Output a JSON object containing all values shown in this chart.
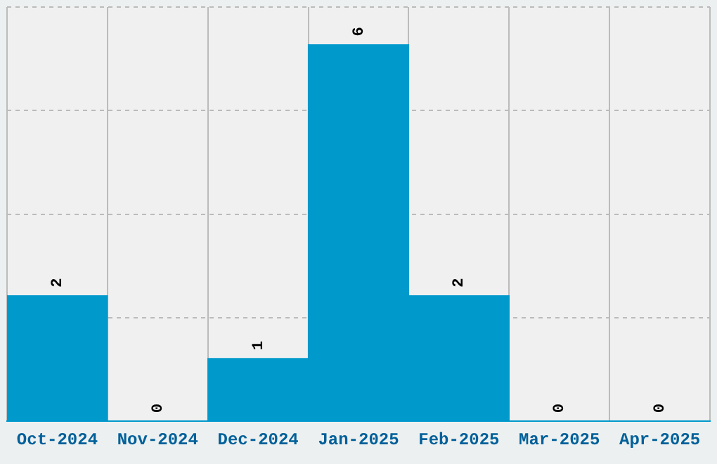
{
  "chart_data": {
    "type": "bar",
    "categories": [
      "Oct-2024",
      "Nov-2024",
      "Dec-2024",
      "Jan-2025",
      "Feb-2025",
      "Mar-2025",
      "Apr-2025"
    ],
    "values": [
      2,
      0,
      1,
      6,
      2,
      0,
      0
    ],
    "color": "#0099cc",
    "ylim": [
      0,
      6.6
    ],
    "yticks": [
      {
        "value": 0,
        "label": null
      },
      {
        "value": 1.65,
        "label": null
      },
      {
        "value": 3.3,
        "label": null
      },
      {
        "value": 4.95,
        "label": null
      },
      {
        "value": 6.6,
        "label": null
      }
    ],
    "grid": true,
    "data_labels": true,
    "tick_labels": "x",
    "legend": false
  }
}
